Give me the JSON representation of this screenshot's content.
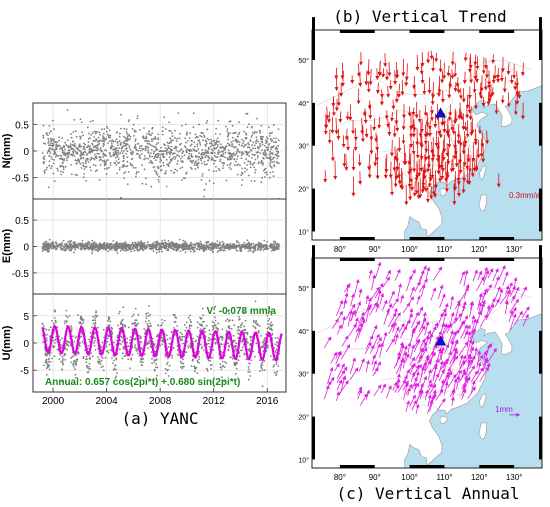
{
  "figure": {
    "panel_a_caption": "(a) YANC",
    "panel_b_caption": "(b) Vertical Trend",
    "panel_c_caption": "(c) Vertical Annual"
  },
  "colors": {
    "scatter": "#7f7f7f",
    "fit_curve": "#e000e0",
    "annotation": "#1a8a1a",
    "trend_arrow": "#e01010",
    "annual_arrow": "#e020e0",
    "station": "#1010d0",
    "sea": "#b7dff0",
    "land": "#ffffff",
    "border": "#9a9a9a"
  },
  "chart_data": [
    {
      "type": "scatter",
      "panel": "a-N",
      "ylabel": "N(mm)",
      "yticks": [
        "0.5",
        "0",
        "-0.5"
      ],
      "ytick_values": [
        0.5,
        0,
        -0.5
      ],
      "ylim": [
        -0.9,
        0.9
      ],
      "xlim": [
        1998.5,
        2017.4
      ],
      "noise_sd": 0.22
    },
    {
      "type": "scatter",
      "panel": "a-E",
      "ylabel": "E(mm)",
      "yticks": [
        "0.5",
        "0",
        "-0.5"
      ],
      "ytick_values": [
        0.5,
        0,
        -0.5
      ],
      "ylim": [
        -0.9,
        0.9
      ],
      "xlim": [
        1998.5,
        2017.4
      ],
      "noise_sd": 0.04
    },
    {
      "type": "line",
      "panel": "a-U",
      "ylabel": "U(mm)",
      "yticks": [
        "5",
        "0",
        "-5"
      ],
      "ytick_values": [
        5,
        0,
        -5
      ],
      "ylim": [
        -9,
        9
      ],
      "xlim": [
        1998.5,
        2017.4
      ],
      "xticks": [
        "2000",
        "2004",
        "2008",
        "2012",
        "2016"
      ],
      "xtick_values": [
        2000,
        2004,
        2008,
        2012,
        2016
      ],
      "annual_cos": 0.657,
      "annual_sin": 0.68,
      "trend_mm_per_yr": -0.078,
      "annotations": {
        "velocity": "V: -0.078 mm/a",
        "annual": "Annual: 0.657 cos(2pi*t) + 0.680 sin(2pi*t)"
      }
    },
    {
      "type": "map",
      "panel": "b",
      "lon_range": [
        72,
        138
      ],
      "lat_range": [
        8,
        57
      ],
      "lon_ticks": [
        "80°",
        "90°",
        "100°",
        "110°",
        "120°",
        "130°"
      ],
      "lon_tick_values": [
        80,
        90,
        100,
        110,
        120,
        130
      ],
      "lat_ticks": [
        "10°",
        "20°",
        "30°",
        "40°",
        "50°"
      ],
      "lat_tick_values": [
        10,
        20,
        30,
        40,
        50
      ],
      "scale_label": "0.3mm/a",
      "station": {
        "lon": 108.9,
        "lat": 37.6
      }
    },
    {
      "type": "map",
      "panel": "c",
      "lon_range": [
        72,
        138
      ],
      "lat_range": [
        8,
        57
      ],
      "lon_ticks": [
        "80°",
        "90°",
        "100°",
        "110°",
        "120°",
        "130°"
      ],
      "lon_tick_values": [
        80,
        90,
        100,
        110,
        120,
        130
      ],
      "lat_ticks": [
        "10°",
        "20°",
        "30°",
        "40°",
        "50°"
      ],
      "lat_tick_values": [
        10,
        20,
        30,
        40,
        50
      ],
      "scale_label": "1mm",
      "station": {
        "lon": 108.9,
        "lat": 37.6
      }
    }
  ]
}
